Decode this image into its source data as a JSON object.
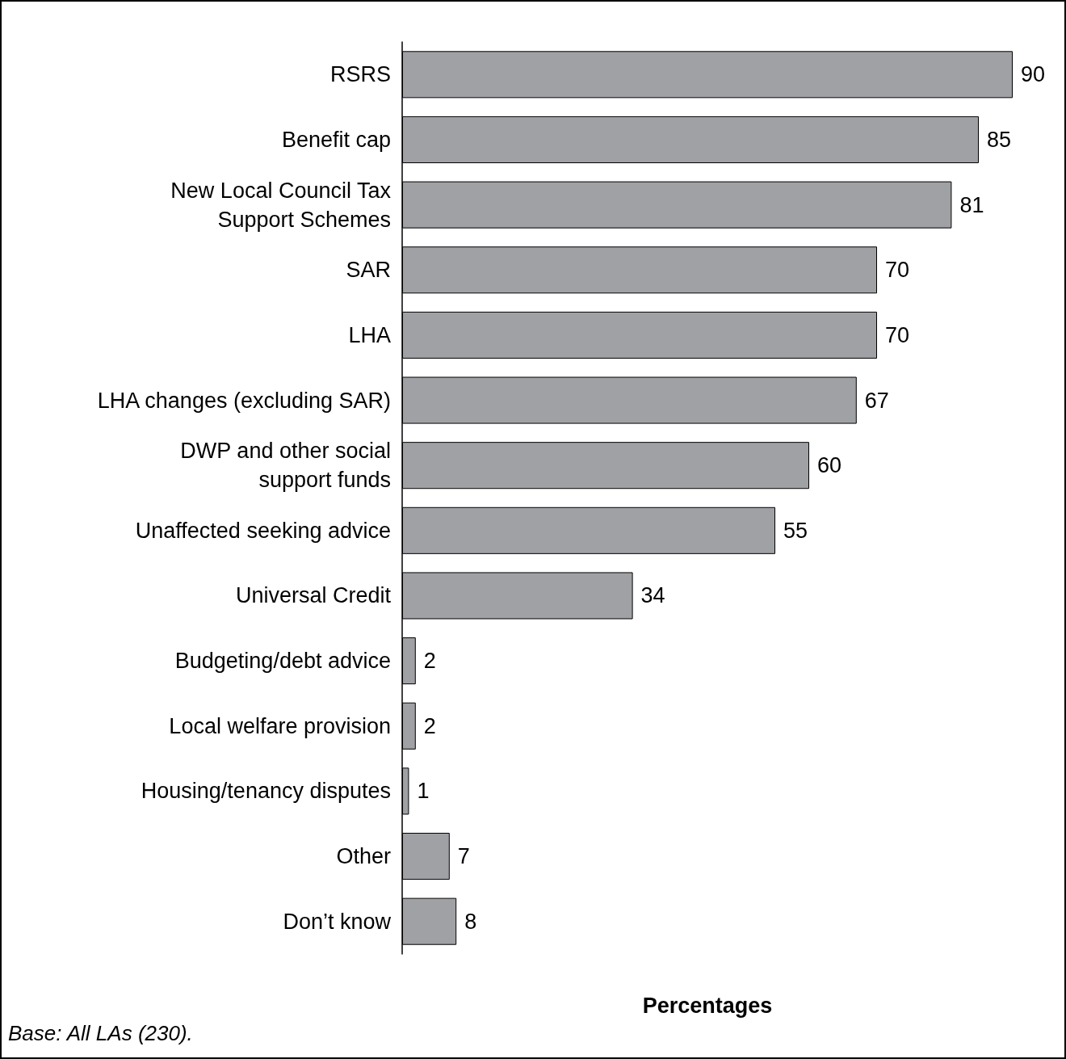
{
  "chart_data": {
    "type": "bar",
    "orientation": "horizontal",
    "xlabel": "Percentages",
    "categories": [
      "RSRS",
      "Benefit cap",
      "New Local Council Tax\nSupport Schemes",
      "SAR",
      "LHA",
      "LHA changes (excluding SAR)",
      "DWP and other social\nsupport funds",
      "Unaffected seeking advice",
      "Universal Credit",
      "Budgeting/debt advice",
      "Local welfare provision",
      "Housing/tenancy disputes",
      "Other",
      "Don’t know"
    ],
    "values": [
      90,
      85,
      81,
      70,
      70,
      67,
      60,
      55,
      34,
      2,
      2,
      1,
      7,
      8
    ],
    "color": "#a0a1a4",
    "data_labels": true,
    "tick_labels": "y",
    "annotations": [
      "Base: All LAs (230)."
    ]
  }
}
